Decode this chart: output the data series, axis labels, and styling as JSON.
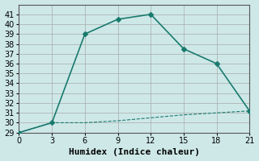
{
  "xlabel": "Humidex (Indice chaleur)",
  "background_color": "#cee8e8",
  "grid_color": "#aaaaaa",
  "line_color": "#1a7a6e",
  "x_line1": [
    0,
    3,
    6,
    9,
    12,
    15,
    18,
    21
  ],
  "y_line1": [
    29,
    30,
    39,
    40.5,
    41,
    37.5,
    36,
    31.2
  ],
  "x_line2": [
    0,
    3,
    6,
    9,
    12,
    15,
    18,
    21
  ],
  "y_line2": [
    29,
    30,
    30,
    30.2,
    30.5,
    30.8,
    31,
    31.2
  ],
  "ylim": [
    29,
    42
  ],
  "xlim": [
    0,
    21
  ],
  "yticks": [
    29,
    30,
    31,
    32,
    33,
    34,
    35,
    36,
    37,
    38,
    39,
    40,
    41
  ],
  "xticks": [
    0,
    3,
    6,
    9,
    12,
    15,
    18,
    21
  ],
  "tick_fontsize": 7,
  "xlabel_fontsize": 8
}
